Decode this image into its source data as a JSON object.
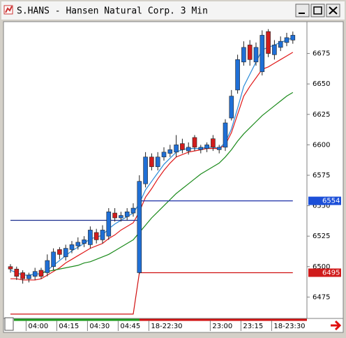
{
  "window_title": "S.HANS - Hansen Natural Corp. 3 Min",
  "chart_data": {
    "type": "candlestick",
    "up_color": "#1f6fd6",
    "down_color": "#d21d1d",
    "categories": [
      null,
      null,
      null,
      "04:00",
      null,
      null,
      null,
      null,
      "04:15",
      null,
      null,
      null,
      null,
      "04:30",
      null,
      null,
      null,
      null,
      "04:45",
      null,
      null,
      null,
      null,
      "18-22:30",
      null,
      null,
      null,
      null,
      null,
      null,
      null,
      null,
      null,
      "23:00",
      null,
      null,
      null,
      null,
      "23:15",
      null,
      null,
      null,
      null,
      "18-23:30",
      null,
      null,
      null
    ],
    "open": [
      6500,
      6498,
      6495,
      6490,
      6492,
      6497,
      6495,
      6500,
      6514,
      6508,
      6514,
      6517,
      6519,
      6518,
      6528,
      6522,
      6525,
      6544,
      6540,
      6541,
      6544,
      6495,
      6568,
      6590,
      6582,
      6590,
      6593,
      6594,
      6601,
      6595,
      6606,
      6596,
      6597,
      6605,
      6596,
      6598,
      6622,
      6645,
      6668,
      6682,
      6668,
      6660,
      6693,
      6674,
      6680,
      6684,
      6686
    ],
    "high": [
      6502,
      6500,
      6497,
      6495,
      6499,
      6499,
      6510,
      6515,
      6516,
      6518,
      6521,
      6524,
      6525,
      6533,
      6531,
      6534,
      6548,
      6548,
      6545,
      6548,
      6552,
      6575,
      6594,
      6593,
      6594,
      6598,
      6600,
      6608,
      6605,
      6602,
      6608,
      6600,
      6602,
      6608,
      6600,
      6621,
      6645,
      6674,
      6685,
      6686,
      6684,
      6694,
      6695,
      6686,
      6689,
      6692,
      6693
    ],
    "low": [
      6495,
      6489,
      6486,
      6487,
      6489,
      6490,
      6492,
      6497,
      6506,
      6505,
      6511,
      6514,
      6516,
      6515,
      6519,
      6519,
      6522,
      6537,
      6537,
      6538,
      6541,
      6494,
      6565,
      6579,
      6579,
      6587,
      6590,
      6590,
      6593,
      6592,
      6595,
      6593,
      6594,
      6595,
      6593,
      6595,
      6620,
      6642,
      6665,
      6665,
      6665,
      6657,
      6672,
      6670,
      6677,
      6681,
      6683
    ],
    "close": [
      6498,
      6492,
      6490,
      6493,
      6496,
      6492,
      6505,
      6512,
      6510,
      6515,
      6518,
      6520,
      6522,
      6530,
      6522,
      6530,
      6545,
      6540,
      6542,
      6545,
      6548,
      6570,
      6590,
      6582,
      6590,
      6594,
      6596,
      6600,
      6596,
      6598,
      6598,
      6598,
      6600,
      6598,
      6598,
      6618,
      6640,
      6670,
      6680,
      6670,
      6680,
      6690,
      6675,
      6682,
      6685,
      6688,
      6690
    ],
    "series": [
      {
        "color": "#2a8ad8",
        "values": [
          6497,
          6495,
          6493,
          6493,
          6494,
          6494,
          6497,
          6501,
          6505,
          6509,
          6513,
          6516,
          6519,
          6523,
          6524,
          6526,
          6531,
          6535,
          6538,
          6541,
          6544,
          6552,
          6563,
          6570,
          6577,
          6584,
          6589,
          6594,
          6596,
          6597,
          6597,
          6597,
          6598,
          6598,
          6597,
          6602,
          6613,
          6630,
          6648,
          6658,
          6668,
          6678,
          6680,
          6682,
          6684,
          6686,
          6688
        ]
      },
      {
        "color": "#e01818",
        "values": [
          6490,
          6490,
          6489,
          6489,
          6489,
          6490,
          6493,
          6496,
          6499,
          6503,
          6506,
          6509,
          6512,
          6515,
          6517,
          6519,
          6523,
          6526,
          6530,
          6533,
          6536,
          6545,
          6557,
          6564,
          6572,
          6579,
          6585,
          6590,
          6592,
          6594,
          6595,
          6596,
          6597,
          6597,
          6597,
          6600,
          6610,
          6625,
          6640,
          6648,
          6655,
          6662,
          6664,
          6667,
          6670,
          6673,
          6676
        ]
      },
      {
        "color": "#1a8a1a",
        "values": [
          null,
          null,
          null,
          null,
          null,
          6495,
          6496,
          6497,
          6498,
          6499,
          6500,
          6501,
          6503,
          6504,
          6506,
          6508,
          6510,
          6513,
          6516,
          6519,
          6522,
          6528,
          6534,
          6540,
          6545,
          6550,
          6555,
          6560,
          6564,
          6568,
          6572,
          6576,
          6579,
          6582,
          6585,
          6590,
          6596,
          6603,
          6609,
          6614,
          6619,
          6624,
          6628,
          6632,
          6636,
          6640,
          6643
        ]
      },
      {
        "color": "#1c2f8f",
        "values": [
          6538,
          6538,
          6538,
          6538,
          6538,
          6538,
          6538,
          6538,
          6538,
          6538,
          6538,
          6538,
          6538,
          6538,
          6538,
          6538,
          6538,
          6538,
          6538,
          6538,
          6538,
          6538,
          null,
          null,
          null,
          null,
          null,
          null,
          null,
          null,
          null,
          null,
          null,
          null,
          null,
          null,
          null,
          null,
          null,
          null,
          null,
          null,
          null,
          null,
          null,
          null,
          null
        ]
      },
      {
        "color": "#1c2fa8",
        "values": [
          null,
          null,
          null,
          null,
          null,
          null,
          null,
          null,
          null,
          null,
          null,
          null,
          null,
          null,
          null,
          null,
          null,
          null,
          null,
          null,
          null,
          6554,
          6554,
          6554,
          6554,
          6554,
          6554,
          6554,
          6554,
          6554,
          6554,
          6554,
          6554,
          6554,
          6554,
          6554,
          6554,
          6554,
          6554,
          6554,
          6554,
          6554,
          6554,
          6554,
          6554,
          6554,
          6554
        ]
      },
      {
        "color": "#d01010",
        "values": [
          6461,
          6461,
          6461,
          6461,
          6461,
          6461,
          6461,
          6461,
          6461,
          6461,
          6461,
          6461,
          6461,
          6461,
          6461,
          6461,
          6461,
          6461,
          6461,
          6461,
          6461,
          6495,
          6495,
          6495,
          6495,
          6495,
          6495,
          6495,
          6495,
          6495,
          6495,
          6495,
          6495,
          6495,
          6495,
          6495,
          6495,
          6495,
          6495,
          6495,
          6495,
          6495,
          6495,
          6495,
          6495,
          6495,
          6495
        ]
      }
    ],
    "price_tags": [
      {
        "value": 6554,
        "color": "#1c4fd8"
      },
      {
        "value": 6495,
        "color": "#d01c1c"
      }
    ],
    "ylim": [
      6458,
      6700
    ],
    "yticks": [
      6475,
      6500,
      6525,
      6550,
      6575,
      6600,
      6625,
      6650,
      6675
    ]
  }
}
